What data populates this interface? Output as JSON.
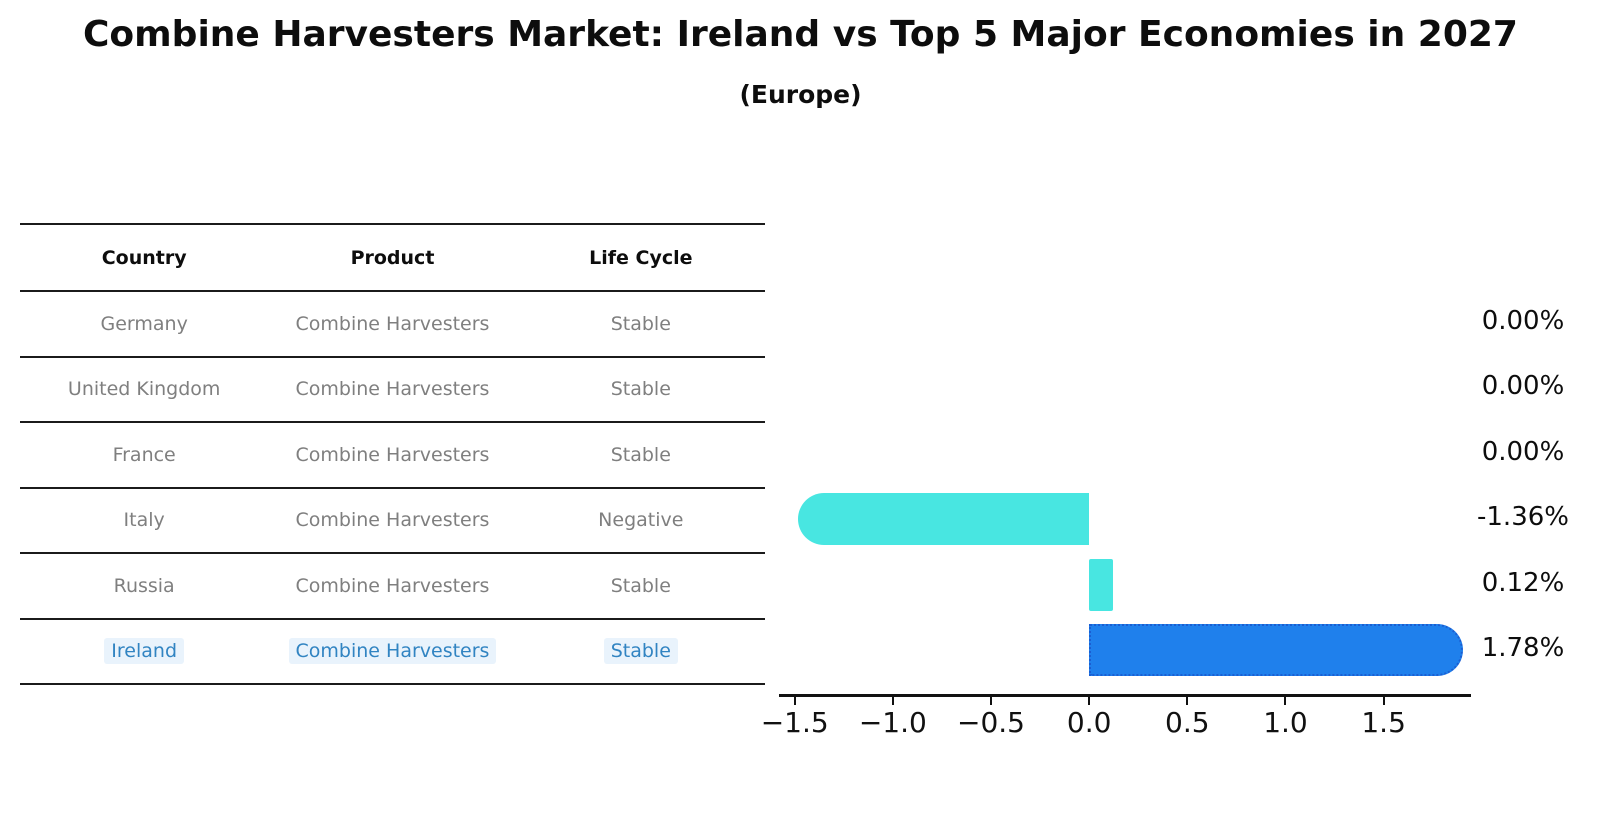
{
  "title": "Combine Harvesters Market: Ireland vs Top 5 Major Economies in 2027",
  "subtitle": "(Europe)",
  "table": {
    "headers": [
      "Country",
      "Product",
      "Life Cycle"
    ],
    "rows": [
      {
        "country": "Germany",
        "product": "Combine Harvesters",
        "life_cycle": "Stable",
        "highlight": false
      },
      {
        "country": "United Kingdom",
        "product": "Combine Harvesters",
        "life_cycle": "Stable",
        "highlight": false
      },
      {
        "country": "France",
        "product": "Combine Harvesters",
        "life_cycle": "Stable",
        "highlight": false
      },
      {
        "country": "Italy",
        "product": "Combine Harvesters",
        "life_cycle": "Negative",
        "highlight": false
      },
      {
        "country": "Russia",
        "product": "Combine Harvesters",
        "life_cycle": "Stable",
        "highlight": false
      },
      {
        "country": "Ireland",
        "product": "Combine Harvesters",
        "life_cycle": "Stable",
        "highlight": true
      }
    ]
  },
  "chart_data": {
    "type": "bar",
    "orientation": "horizontal",
    "title": "Combine Harvesters Market: Ireland vs Top 5 Major Economies in 2027",
    "subtitle": "(Europe)",
    "categories": [
      "Germany",
      "United Kingdom",
      "France",
      "Italy",
      "Russia",
      "Ireland"
    ],
    "values": [
      0.0,
      0.0,
      0.0,
      -1.36,
      0.12,
      1.78
    ],
    "value_labels": [
      "0.00%",
      "0.00%",
      "0.00%",
      "-1.36%",
      "0.12%",
      "1.78%"
    ],
    "unit": "%",
    "xlim": [
      -1.58,
      1.94
    ],
    "xticks": [
      -1.5,
      -1.0,
      -0.5,
      0.0,
      0.5,
      1.0,
      1.5
    ],
    "xtick_labels": [
      "−1.5",
      "−1.0",
      "−0.5",
      "0.0",
      "0.5",
      "1.0",
      "1.5"
    ],
    "grid": false,
    "legend": false,
    "colors": {
      "default_bar": "#48e6e1",
      "highlight_bar": "#1f80ec",
      "highlight_bar_border": "#1b5ed2",
      "row_text": "#7f7f7f",
      "highlight_text": "#3184c2",
      "axis": "#111111"
    },
    "bar_colors": [
      "#48e6e1",
      "#48e6e1",
      "#48e6e1",
      "#48e6e1",
      "#48e6e1",
      "#1f80ec"
    ],
    "highlight_index": 5
  }
}
